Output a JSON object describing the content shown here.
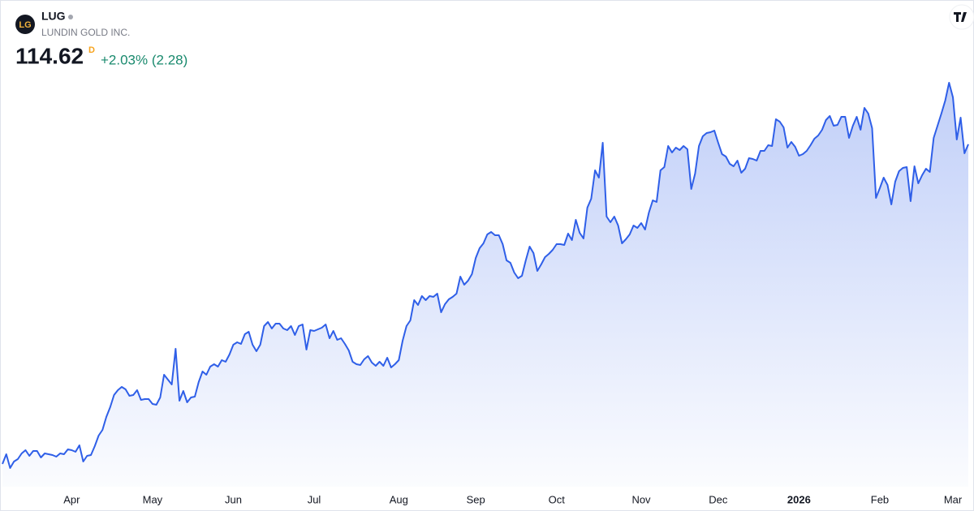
{
  "header": {
    "symbol": "LUG",
    "name": "LUNDIN GOLD INC.",
    "logo": "LG",
    "price": "114.62",
    "interval": "D",
    "change": "+2.03% (2.28)"
  },
  "chart_data": {
    "type": "area",
    "color": "#2f5fe8",
    "xlim": [
      0,
      251
    ],
    "ylim": [
      30,
      150
    ],
    "xticks": [
      {
        "value": 18,
        "label": "Apr"
      },
      {
        "value": 39,
        "label": "May"
      },
      {
        "value": 60,
        "label": "Jun"
      },
      {
        "value": 81,
        "label": "Jul"
      },
      {
        "value": 103,
        "label": "Aug"
      },
      {
        "value": 123,
        "label": "Sep"
      },
      {
        "value": 144,
        "label": "Oct"
      },
      {
        "value": 166,
        "label": "Nov"
      },
      {
        "value": 186,
        "label": "Dec"
      },
      {
        "value": 207,
        "label": "2026",
        "bold": true
      },
      {
        "value": 228,
        "label": "Feb"
      },
      {
        "value": 247,
        "label": "Mar"
      }
    ],
    "series": [
      {
        "color": "#2f5fe8",
        "values": [
          35.8,
          38.2,
          34.8,
          36.4,
          37.0,
          38.4,
          39.2,
          37.8,
          39.0,
          39.0,
          37.4,
          38.4,
          38.2,
          38.0,
          37.6,
          38.4,
          38.2,
          39.4,
          39.2,
          38.8,
          40.4,
          36.4,
          37.8,
          38.0,
          40.2,
          42.8,
          44.2,
          47.4,
          49.8,
          52.8,
          54.0,
          54.8,
          54.2,
          52.6,
          52.8,
          54.0,
          51.6,
          51.8,
          51.8,
          50.6,
          50.4,
          52.2,
          57.8,
          56.6,
          55.4,
          64.2,
          51.4,
          53.8,
          51.0,
          52.2,
          52.4,
          56.0,
          58.6,
          57.8,
          59.8,
          60.4,
          59.8,
          61.4,
          61.0,
          62.8,
          65.2,
          65.8,
          65.4,
          67.8,
          68.4,
          65.2,
          63.6,
          65.2,
          69.8,
          70.8,
          69.2,
          70.4,
          70.4,
          69.2,
          68.8,
          69.8,
          67.6,
          69.8,
          70.2,
          64.0,
          68.8,
          68.6,
          69.0,
          69.4,
          70.2,
          66.8,
          68.6,
          66.4,
          66.8,
          65.4,
          63.8,
          61.0,
          60.4,
          60.2,
          61.6,
          62.4,
          60.8,
          60.0,
          61.0,
          60.0,
          62.0,
          59.6,
          60.4,
          61.4,
          66.2,
          69.8,
          71.2,
          76.2,
          75.0,
          77.2,
          76.2,
          77.2,
          77.0,
          77.8,
          73.2,
          75.2,
          76.4,
          77.0,
          77.8,
          82.0,
          80.0,
          81.0,
          82.6,
          86.6,
          89.0,
          90.2,
          92.4,
          93.0,
          92.2,
          92.2,
          90.0,
          86.0,
          85.4,
          83.0,
          81.6,
          82.2,
          86.0,
          89.4,
          87.8,
          83.4,
          85.0,
          86.8,
          87.6,
          88.6,
          90.0,
          90.0,
          89.8,
          92.6,
          91.0,
          96.0,
          92.8,
          91.4,
          99.0,
          101.2,
          108.2,
          106.4,
          115.0,
          96.8,
          95.4,
          96.8,
          94.6,
          90.2,
          91.2,
          92.4,
          94.6,
          94.0,
          95.2,
          93.6,
          97.8,
          100.8,
          100.4,
          108.2,
          109.0,
          114.2,
          112.6,
          113.8,
          113.2,
          114.2,
          113.4,
          103.6,
          107.4,
          114.2,
          116.6,
          117.4,
          117.6,
          118.0,
          115.0,
          112.2,
          111.6,
          109.8,
          109.2,
          110.6,
          107.6,
          108.6,
          111.2,
          111.0,
          110.6,
          113.0,
          113.0,
          114.4,
          114.2,
          120.8,
          120.2,
          118.8,
          113.8,
          115.2,
          114.0,
          111.8,
          112.2,
          113.0,
          114.4,
          116.0,
          116.8,
          118.2,
          120.6,
          121.6,
          119.2,
          119.4,
          121.4,
          121.4,
          116.2,
          119.2,
          121.4,
          118.2,
          123.6,
          122.2,
          118.6,
          101.4,
          103.8,
          106.4,
          104.6,
          99.8,
          105.4,
          108.0,
          108.8,
          109.0,
          100.6,
          109.2,
          105.0,
          107.0,
          108.6,
          107.8,
          116.2,
          119.2,
          122.2,
          125.4,
          129.8,
          126.2,
          115.8,
          121.2,
          112.4,
          114.62
        ]
      }
    ]
  }
}
